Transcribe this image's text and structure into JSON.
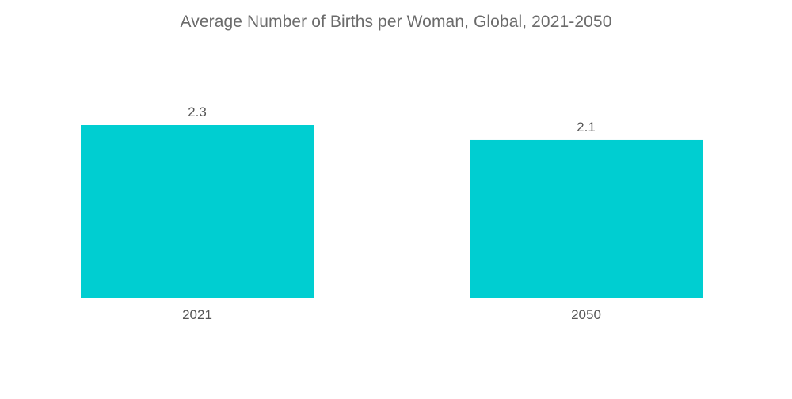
{
  "chart_data": {
    "type": "bar",
    "title": "Average Number of Births per Woman, Global, 2021-2050",
    "xlabel": "",
    "ylabel": "",
    "categories": [
      "2021",
      "2050"
    ],
    "values": [
      2.3,
      2.1
    ],
    "value_labels": [
      "2.3",
      "2.1"
    ],
    "ylim": [
      0,
      2.3
    ],
    "grid": false,
    "legend": "none",
    "bar_color": "#00CED1"
  }
}
